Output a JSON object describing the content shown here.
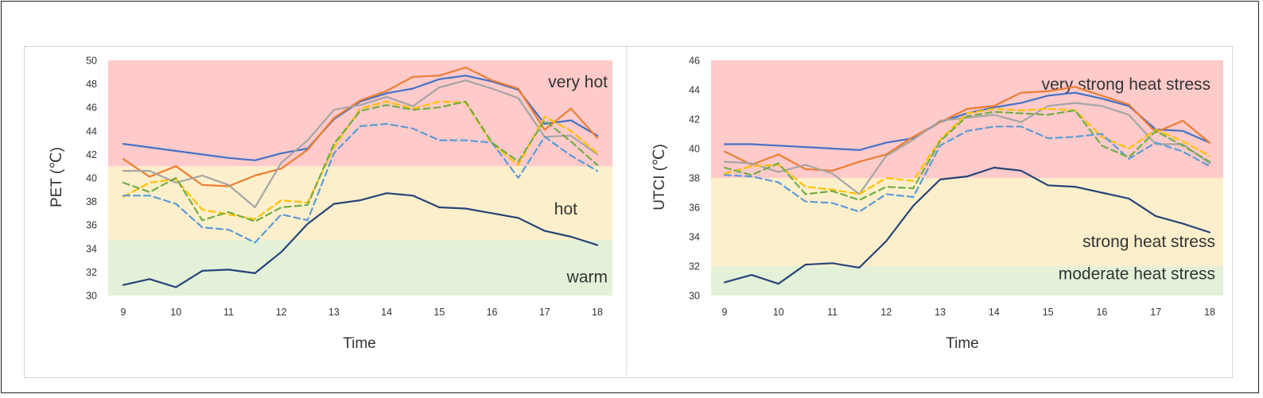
{
  "chart_data": [
    {
      "type": "line",
      "ylabel": "PET (℃)",
      "xlabel": "Time",
      "xlim": [
        9,
        18
      ],
      "ylim": [
        30,
        50
      ],
      "x_ticks": [
        "9",
        "10",
        "11",
        "12",
        "13",
        "14",
        "15",
        "16",
        "17",
        "18"
      ],
      "y_ticks": [
        "30",
        "32",
        "34",
        "36",
        "38",
        "40",
        "42",
        "44",
        "46",
        "48",
        "50"
      ],
      "x": [
        9,
        9.5,
        10,
        10.5,
        11,
        11.5,
        12,
        12.5,
        13,
        13.5,
        14,
        14.5,
        15,
        15.5,
        16,
        16.5,
        17,
        17.5,
        18
      ],
      "zones": [
        {
          "label": "warm",
          "from": 30,
          "to": 34.7,
          "color": "#e3f1d9"
        },
        {
          "label": "hot",
          "from": 34.7,
          "to": 41,
          "color": "#fdefcb"
        },
        {
          "label": "very hot",
          "from": 41,
          "to": 50,
          "color": "#ffcaca"
        }
      ],
      "series": [
        {
          "color": "#4472c4",
          "dash": false,
          "values": [
            42.9,
            42.6,
            42.3,
            42.0,
            41.7,
            41.5,
            42.1,
            42.5,
            45.0,
            46.5,
            47.2,
            47.6,
            48.4,
            48.7,
            48.2,
            47.5,
            44.6,
            44.9,
            43.6
          ]
        },
        {
          "color": "#ed7d31",
          "dash": false,
          "values": [
            41.6,
            40.1,
            41.0,
            39.4,
            39.3,
            40.2,
            40.8,
            42.4,
            45.1,
            46.6,
            47.4,
            48.6,
            48.7,
            49.4,
            48.3,
            47.6,
            44.1,
            45.9,
            43.4
          ]
        },
        {
          "color": "#a5a5a5",
          "dash": false,
          "values": [
            40.6,
            40.6,
            39.6,
            40.2,
            39.4,
            37.5,
            41.3,
            43.2,
            45.8,
            46.2,
            46.9,
            46.1,
            47.7,
            48.3,
            47.6,
            46.8,
            43.5,
            43.6,
            42.0
          ]
        },
        {
          "color": "#ffc000",
          "dash": true,
          "values": [
            38.4,
            39.6,
            39.9,
            37.3,
            36.9,
            36.5,
            38.1,
            37.9,
            42.6,
            45.9,
            46.5,
            45.9,
            46.5,
            46.4,
            42.9,
            41.1,
            45.2,
            44.0,
            42.1
          ]
        },
        {
          "color": "#5b9bd5",
          "dash": true,
          "values": [
            38.5,
            38.5,
            37.8,
            35.8,
            35.6,
            34.5,
            36.9,
            36.4,
            42.1,
            44.4,
            44.6,
            44.2,
            43.2,
            43.2,
            43.0,
            40.0,
            43.5,
            41.9,
            40.6
          ]
        },
        {
          "color": "#70ad47",
          "dash": true,
          "values": [
            39.6,
            38.8,
            40.0,
            36.4,
            37.1,
            36.3,
            37.5,
            37.7,
            42.9,
            45.7,
            46.2,
            45.8,
            46.0,
            46.5,
            43.0,
            41.4,
            44.9,
            43.1,
            41.1
          ]
        },
        {
          "color": "#264478",
          "dash": false,
          "values": [
            30.9,
            31.4,
            30.7,
            32.1,
            32.2,
            31.9,
            33.7,
            36.1,
            37.8,
            38.1,
            38.7,
            38.5,
            37.5,
            37.4,
            37.0,
            36.6,
            35.5,
            35.0,
            34.3
          ]
        }
      ]
    },
    {
      "type": "line",
      "ylabel": "UTCI (℃)",
      "xlabel": "Time",
      "xlim": [
        9,
        18
      ],
      "ylim": [
        30,
        46
      ],
      "x_ticks": [
        "9",
        "10",
        "11",
        "12",
        "13",
        "14",
        "15",
        "16",
        "17",
        "18"
      ],
      "y_ticks": [
        "30",
        "32",
        "34",
        "36",
        "38",
        "40",
        "42",
        "44",
        "46"
      ],
      "x": [
        9,
        9.5,
        10,
        10.5,
        11,
        11.5,
        12,
        12.5,
        13,
        13.5,
        14,
        14.5,
        15,
        15.5,
        16,
        16.5,
        17,
        17.5,
        18
      ],
      "zones": [
        {
          "label": "moderate heat stress",
          "from": 30,
          "to": 32,
          "color": "#e3f1d9"
        },
        {
          "label": "strong heat stress",
          "from": 32,
          "to": 38,
          "color": "#fdefcb"
        },
        {
          "label": "very strong heat stress",
          "from": 38,
          "to": 46,
          "color": "#ffcaca"
        }
      ],
      "series": [
        {
          "color": "#4472c4",
          "dash": false,
          "values": [
            40.3,
            40.3,
            40.2,
            40.1,
            40.0,
            39.9,
            40.4,
            40.7,
            41.8,
            42.4,
            42.8,
            43.1,
            43.6,
            43.8,
            43.4,
            42.9,
            41.3,
            41.2,
            40.4
          ]
        },
        {
          "color": "#ed7d31",
          "dash": false,
          "values": [
            39.8,
            38.9,
            39.6,
            38.6,
            38.5,
            39.1,
            39.6,
            40.8,
            41.8,
            42.7,
            42.9,
            43.8,
            43.9,
            44.2,
            43.6,
            43.0,
            41.1,
            41.9,
            40.4
          ]
        },
        {
          "color": "#a5a5a5",
          "dash": false,
          "values": [
            39.1,
            39.0,
            38.4,
            38.9,
            38.3,
            36.9,
            39.5,
            40.6,
            41.9,
            42.1,
            42.3,
            41.8,
            42.9,
            43.1,
            42.9,
            42.3,
            40.3,
            40.3,
            39.0
          ]
        },
        {
          "color": "#ffc000",
          "dash": true,
          "values": [
            38.3,
            38.8,
            38.9,
            37.4,
            37.2,
            36.9,
            38.0,
            37.8,
            40.6,
            42.4,
            42.7,
            42.6,
            42.7,
            42.6,
            40.8,
            40.0,
            41.3,
            40.5,
            39.5
          ]
        },
        {
          "color": "#5b9bd5",
          "dash": true,
          "values": [
            38.2,
            38.1,
            37.7,
            36.4,
            36.3,
            35.7,
            36.9,
            36.7,
            40.2,
            41.2,
            41.5,
            41.5,
            40.7,
            40.8,
            41.0,
            39.3,
            40.4,
            39.8,
            38.8
          ]
        },
        {
          "color": "#70ad47",
          "dash": true,
          "values": [
            38.7,
            38.2,
            39.0,
            36.9,
            37.1,
            36.5,
            37.4,
            37.3,
            40.5,
            42.2,
            42.5,
            42.4,
            42.3,
            42.6,
            40.2,
            39.4,
            41.2,
            40.2,
            39.1
          ]
        },
        {
          "color": "#264478",
          "dash": false,
          "values": [
            30.9,
            31.4,
            30.8,
            32.1,
            32.2,
            31.9,
            33.7,
            36.1,
            37.9,
            38.1,
            38.7,
            38.5,
            37.5,
            37.4,
            37.0,
            36.6,
            35.4,
            34.9,
            34.3
          ]
        }
      ]
    }
  ]
}
